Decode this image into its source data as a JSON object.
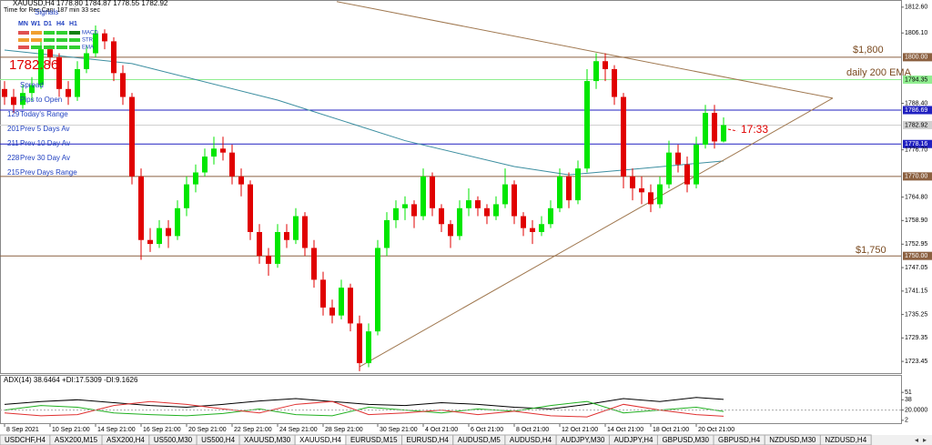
{
  "chart_data": {
    "type": "candlestick",
    "header": "XAUUSD,H4  1778.80 1784.87 1778.55 1782.92",
    "subheader": "Time for Rec.Can: 187 min 33 sec",
    "xlim": [
      -0.5,
      98.5
    ],
    "ylim": [
      1720.5,
      1814.4
    ],
    "xticks": [
      {
        "value": 0,
        "label": "8 Sep 2021"
      },
      {
        "value": 5,
        "label": "10 Sep 21:00"
      },
      {
        "value": 10,
        "label": "14 Sep 21:00"
      },
      {
        "value": 15,
        "label": "16 Sep 21:00"
      },
      {
        "value": 20,
        "label": "20 Sep 21:00"
      },
      {
        "value": 25,
        "label": "22 Sep 21:00"
      },
      {
        "value": 30,
        "label": "24 Sep 21:00"
      },
      {
        "value": 35,
        "label": "28 Sep 21:00"
      },
      {
        "value": 41,
        "label": "30 Sep 21:00"
      },
      {
        "value": 46,
        "label": "4 Oct 21:00"
      },
      {
        "value": 51,
        "label": "6 Oct 21:00"
      },
      {
        "value": 56,
        "label": "8 Oct 21:00"
      },
      {
        "value": 61,
        "label": "12 Oct 21:00"
      },
      {
        "value": 66,
        "label": "14 Oct 21:00"
      },
      {
        "value": 71,
        "label": "18 Oct 21:00"
      },
      {
        "value": 76,
        "label": "20 Oct 21:00"
      }
    ],
    "yticks": [
      {
        "value": 1812.6,
        "label": "1812.60"
      },
      {
        "value": 1806.1,
        "label": "1806.10"
      },
      {
        "value": 1788.4,
        "label": "1788.40"
      },
      {
        "value": 1776.7,
        "label": "1776.70"
      },
      {
        "value": 1764.8,
        "label": "1764.80"
      },
      {
        "value": 1758.9,
        "label": "1758.90"
      },
      1752.95,
      1747.05,
      1741.15,
      1735.25,
      1729.35,
      1723.45
    ],
    "up_color": "#00e600",
    "down_color": "#e00000",
    "ohlc": [
      [
        1792,
        1794,
        1788,
        1790
      ],
      [
        1790,
        1792,
        1786,
        1788
      ],
      [
        1788,
        1793,
        1787,
        1791
      ],
      [
        1791,
        1795,
        1789,
        1793
      ],
      [
        1793,
        1804,
        1792,
        1802
      ],
      [
        1802,
        1803,
        1798,
        1800
      ],
      [
        1800,
        1801,
        1790,
        1792
      ],
      [
        1792,
        1794,
        1788,
        1790
      ],
      [
        1790,
        1799,
        1789,
        1797
      ],
      [
        1797,
        1803,
        1796,
        1801
      ],
      [
        1801,
        1808,
        1800,
        1806
      ],
      [
        1806,
        1807,
        1802,
        1804
      ],
      [
        1804,
        1805,
        1794,
        1796
      ],
      [
        1796,
        1798,
        1788,
        1790
      ],
      [
        1790,
        1791,
        1768,
        1770
      ],
      [
        1770,
        1772,
        1749,
        1754
      ],
      [
        1754,
        1757,
        1751,
        1753
      ],
      [
        1753,
        1759,
        1752,
        1757
      ],
      [
        1757,
        1759,
        1752,
        1755
      ],
      [
        1755,
        1764,
        1754,
        1762
      ],
      [
        1762,
        1770,
        1760,
        1768
      ],
      [
        1768,
        1773,
        1766,
        1771
      ],
      [
        1771,
        1777,
        1770,
        1775
      ],
      [
        1775,
        1780,
        1773,
        1777
      ],
      [
        1777,
        1780,
        1774,
        1776
      ],
      [
        1776,
        1778,
        1768,
        1770
      ],
      [
        1770,
        1772,
        1765,
        1768
      ],
      [
        1768,
        1769,
        1754,
        1756
      ],
      [
        1756,
        1758,
        1748,
        1750
      ],
      [
        1750,
        1752,
        1745,
        1748
      ],
      [
        1748,
        1758,
        1747,
        1756
      ],
      [
        1756,
        1758,
        1752,
        1754
      ],
      [
        1754,
        1762,
        1753,
        1760
      ],
      [
        1760,
        1761,
        1750,
        1752
      ],
      [
        1752,
        1754,
        1742,
        1744
      ],
      [
        1744,
        1746,
        1735,
        1737
      ],
      [
        1737,
        1739,
        1733,
        1735
      ],
      [
        1735,
        1744,
        1734,
        1742
      ],
      [
        1742,
        1743,
        1731,
        1733
      ],
      [
        1733,
        1735,
        1721,
        1723
      ],
      [
        1723,
        1733,
        1722,
        1731
      ],
      [
        1731,
        1754,
        1730,
        1752
      ],
      [
        1752,
        1761,
        1750,
        1759
      ],
      [
        1759,
        1764,
        1757,
        1762
      ],
      [
        1762,
        1765,
        1759,
        1763
      ],
      [
        1763,
        1764,
        1757,
        1760
      ],
      [
        1760,
        1772,
        1759,
        1770
      ],
      [
        1770,
        1771,
        1760,
        1762
      ],
      [
        1762,
        1763,
        1756,
        1758
      ],
      [
        1758,
        1759,
        1752,
        1755
      ],
      [
        1755,
        1764,
        1754,
        1762
      ],
      [
        1762,
        1767,
        1760,
        1764
      ],
      [
        1764,
        1765,
        1760,
        1762
      ],
      [
        1762,
        1763,
        1758,
        1760
      ],
      [
        1760,
        1765,
        1759,
        1763
      ],
      [
        1763,
        1772,
        1762,
        1768
      ],
      [
        1768,
        1769,
        1758,
        1760
      ],
      [
        1760,
        1761,
        1755,
        1757
      ],
      [
        1757,
        1759,
        1753,
        1756
      ],
      [
        1756,
        1760,
        1755,
        1758
      ],
      [
        1758,
        1764,
        1757,
        1762
      ],
      [
        1762,
        1772,
        1761,
        1770
      ],
      [
        1770,
        1771,
        1762,
        1764
      ],
      [
        1764,
        1774,
        1763,
        1772
      ],
      [
        1772,
        1797,
        1771,
        1794
      ],
      [
        1794,
        1801,
        1792,
        1799
      ],
      [
        1799,
        1801,
        1794,
        1797
      ],
      [
        1797,
        1798,
        1788,
        1790
      ],
      [
        1790,
        1791,
        1767,
        1770
      ],
      [
        1770,
        1772,
        1764,
        1767
      ],
      [
        1767,
        1770,
        1763,
        1766
      ],
      [
        1766,
        1768,
        1761,
        1763
      ],
      [
        1763,
        1770,
        1762,
        1768
      ],
      [
        1768,
        1779,
        1767,
        1776
      ],
      [
        1776,
        1778,
        1771,
        1773
      ],
      [
        1773,
        1775,
        1766,
        1768
      ],
      [
        1768,
        1780,
        1767,
        1778
      ],
      [
        1778,
        1788,
        1777,
        1786
      ],
      [
        1786,
        1788,
        1777,
        1778.8
      ],
      [
        1778.8,
        1784.87,
        1778.55,
        1782.92
      ]
    ],
    "ema": {
      "color": "#3c8ea0",
      "x": [
        0,
        14,
        30,
        44,
        56,
        62,
        70,
        79
      ],
      "values": [
        1801.8,
        1798.4,
        1789.2,
        1779,
        1772.5,
        1770.4,
        1772,
        1773.9
      ]
    },
    "trendlines": [
      {
        "color": "#a07850",
        "x": [
          36.5,
          91
        ],
        "y": [
          1814,
          1789.7
        ]
      },
      {
        "color": "#a07850",
        "x": [
          39,
          91
        ],
        "y": [
          1722.1,
          1789.7
        ]
      }
    ],
    "levels": [
      {
        "value": 1800,
        "label": "1800.00",
        "color": "#8b6040",
        "text_color": "#ffffff"
      },
      {
        "value": 1794.35,
        "label": "1794.35",
        "color": "#90ee90",
        "text_color": "#000000"
      },
      {
        "value": 1786.69,
        "label": "1786.69",
        "color": "#2020c0",
        "text_color": "#ffffff"
      },
      {
        "value": 1782.92,
        "label": "1782.92",
        "color": "#d0d0d0",
        "text_color": "#000000"
      },
      {
        "value": 1778.16,
        "label": "1778.16",
        "color": "#2020c0",
        "text_color": "#ffffff"
      },
      {
        "value": 1770,
        "label": "1770.00",
        "color": "#8b6040",
        "text_color": "#ffffff"
      },
      {
        "value": 1750,
        "label": "1750.00",
        "color": "#8b6040",
        "text_color": "#ffffff"
      }
    ],
    "annotations": [
      "$1,800",
      "daily 200 EMA",
      "$1,750",
      "17:33"
    ],
    "adx": {
      "label": "ADX(14) 38.6464 +DI:17.5309 -DI:9.1626",
      "ylim": [
        -3,
        80
      ],
      "yticks": [
        51,
        38,
        {
          "value": 20,
          "label": "20.0000"
        },
        2
      ],
      "x": [
        0,
        4,
        8,
        12,
        16,
        20,
        24,
        28,
        32,
        36,
        40,
        44,
        48,
        52,
        56,
        60,
        64,
        68,
        72,
        76,
        79
      ],
      "series": [
        {
          "color": "#000000",
          "values": [
            30,
            35,
            38,
            33,
            28,
            25,
            30,
            36,
            40,
            35,
            30,
            28,
            33,
            30,
            25,
            22,
            30,
            40,
            35,
            42,
            38.6464
          ]
        },
        {
          "color": "#20b020",
          "values": [
            20,
            28,
            25,
            15,
            12,
            10,
            14,
            22,
            12,
            10,
            25,
            20,
            15,
            22,
            18,
            28,
            35,
            15,
            20,
            25,
            17.5309
          ]
        },
        {
          "color": "#e03030",
          "values": [
            15,
            10,
            12,
            28,
            35,
            30,
            22,
            15,
            30,
            35,
            12,
            15,
            20,
            12,
            18,
            10,
            8,
            30,
            20,
            12,
            9.1626
          ]
        }
      ]
    }
  },
  "panel": {
    "signals": "Signals",
    "timeframes": [
      "MN",
      "W1",
      "D1",
      "H4",
      "H1"
    ],
    "rows": [
      {
        "label": "MACD",
        "colors": [
          "#e05050",
          "#f0a030",
          "#30d030",
          "#30d030",
          "#108010"
        ]
      },
      {
        "label": "STR",
        "colors": [
          "#f0a030",
          "#f0a030",
          "#30d030",
          "#30d030",
          "#30d030"
        ]
      },
      {
        "label": "EMA",
        "colors": [
          "#e05050",
          "#30d030",
          "#30d030",
          "#30d030",
          "#30d030"
        ]
      }
    ],
    "price": "1782.86",
    "stats": [
      [
        "",
        "Spread"
      ],
      [
        "",
        "Pips to Open"
      ],
      [
        "129",
        "Today's Range"
      ],
      [
        "201",
        "Prev 5 Days Av"
      ],
      [
        "211",
        "Prev 10 Day Av"
      ],
      [
        "228",
        "Prev 30 Day Av"
      ],
      [
        "215",
        "Prev Days Range"
      ]
    ]
  },
  "tabs": [
    "USDCHF,H4",
    "ASX200,M15",
    "ASX200,H4",
    "US500,M30",
    "US500,H4",
    "XAUUSD,M30",
    "XAUUSD,H4",
    "EURUSD,M15",
    "EURUSD,H4",
    "AUDUSD,M5",
    "AUDUSD,H4",
    "AUDJPY,M30",
    "AUDJPY,H4",
    "GBPUSD,M30",
    "GBPUSD,H4",
    "NZDUSD,M30",
    "NZDUSD,H4"
  ],
  "active_tab": 6
}
